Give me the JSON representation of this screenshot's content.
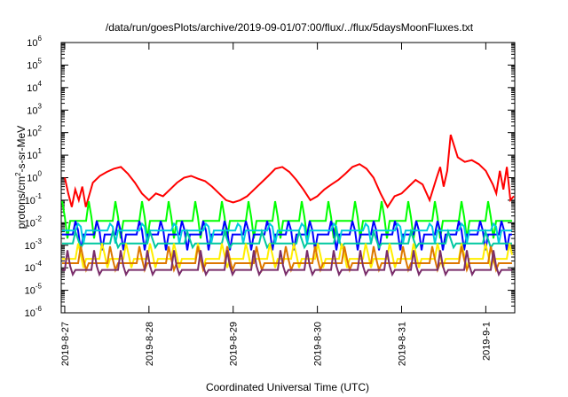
{
  "chart_data": {
    "type": "line",
    "title": "/data/run/goesPlots/archive/2019-09-01/07:00/flux/../flux/5daysMoonFluxes.txt",
    "xlabel": "Coordinated Universal Time (UTC)",
    "ylabel_prefix": "protons/cm",
    "ylabel_sup": "2",
    "ylabel_suffix": "-s-sr-MeV",
    "yscale": "log",
    "ylim_exp": [
      -6,
      6
    ],
    "grid": false,
    "legend": "none",
    "x_ticks": [
      "2019-8-27",
      "2019-8-28",
      "2019-8-29",
      "2019-8-30",
      "2019-8-31",
      "2019-9-1"
    ],
    "x_start": "2019-08-26T23:00",
    "x_end": "2019-09-01T08:15",
    "series": [
      {
        "color": "#ff0000",
        "x": [
          "2019-08-27T00:00",
          "2019-08-27T01:00",
          "2019-08-27T02:00",
          "2019-08-27T03:00",
          "2019-08-27T04:00",
          "2019-08-27T05:00",
          "2019-08-27T06:00",
          "2019-08-27T08:00",
          "2019-08-27T10:00",
          "2019-08-27T12:00",
          "2019-08-27T14:00",
          "2019-08-27T16:00",
          "2019-08-27T18:00",
          "2019-08-27T20:00",
          "2019-08-27T22:00",
          "2019-08-28T00:00",
          "2019-08-28T02:00",
          "2019-08-28T04:00",
          "2019-08-28T06:00",
          "2019-08-28T08:00",
          "2019-08-28T10:00",
          "2019-08-28T12:00",
          "2019-08-28T14:00",
          "2019-08-28T16:00",
          "2019-08-28T18:00",
          "2019-08-28T20:00",
          "2019-08-28T22:00",
          "2019-08-29T00:00",
          "2019-08-29T02:00",
          "2019-08-29T04:00",
          "2019-08-29T06:00",
          "2019-08-29T08:00",
          "2019-08-29T10:00",
          "2019-08-29T12:00",
          "2019-08-29T14:00",
          "2019-08-29T16:00",
          "2019-08-29T18:00",
          "2019-08-29T20:00",
          "2019-08-29T22:00",
          "2019-08-30T00:00",
          "2019-08-30T02:00",
          "2019-08-30T04:00",
          "2019-08-30T06:00",
          "2019-08-30T08:00",
          "2019-08-30T10:00",
          "2019-08-30T12:00",
          "2019-08-30T14:00",
          "2019-08-30T16:00",
          "2019-08-30T18:00",
          "2019-08-30T20:00",
          "2019-08-30T22:00",
          "2019-08-31T00:00",
          "2019-08-31T02:00",
          "2019-08-31T04:00",
          "2019-08-31T06:00",
          "2019-08-31T08:00",
          "2019-08-31T10:00",
          "2019-08-31T11:00",
          "2019-08-31T12:00",
          "2019-08-31T13:00",
          "2019-08-31T14:00",
          "2019-08-31T16:00",
          "2019-08-31T18:00",
          "2019-08-31T20:00",
          "2019-08-31T22:00",
          "2019-09-01T00:00",
          "2019-09-01T02:00",
          "2019-09-01T03:00",
          "2019-09-01T04:00",
          "2019-09-01T05:00",
          "2019-09-01T06:00",
          "2019-09-01T07:00",
          "2019-09-01T08:00"
        ],
        "values": [
          1.0,
          0.2,
          0.05,
          0.3,
          0.1,
          0.4,
          0.05,
          0.6,
          1.2,
          1.8,
          2.5,
          3.0,
          1.5,
          0.6,
          0.2,
          0.1,
          0.2,
          0.15,
          0.3,
          0.6,
          1.0,
          1.2,
          0.9,
          0.7,
          0.4,
          0.2,
          0.1,
          0.08,
          0.1,
          0.15,
          0.3,
          0.6,
          1.2,
          2.5,
          3.0,
          1.8,
          0.8,
          0.3,
          0.1,
          0.15,
          0.3,
          0.5,
          0.8,
          1.5,
          3.0,
          4.0,
          2.5,
          1.0,
          0.2,
          0.05,
          0.15,
          0.2,
          0.4,
          0.8,
          0.5,
          0.1,
          1.0,
          3.0,
          0.4,
          2.0,
          80.0,
          8.0,
          5.0,
          6.0,
          4.0,
          2.0,
          0.5,
          0.2,
          2.0,
          0.3,
          3.0,
          0.1,
          0.15
        ]
      },
      {
        "color": "#00ff00",
        "base": 0.012,
        "spike": 0.09,
        "dip": 0.002,
        "period": 2.5
      },
      {
        "color": "#0000ff",
        "base": 0.003,
        "spike": 0.012,
        "dip": 0.0006,
        "period": 2.0
      },
      {
        "color": "#00ccdd",
        "base": 0.0045,
        "spike": 0.009,
        "dip": 0.0012,
        "period": 3.0
      },
      {
        "color": "#00c8a0",
        "base": 0.0012,
        "spike": 0.004,
        "dip": 0.0008,
        "period": 3.5
      },
      {
        "color": "#ffee00",
        "base": 0.00025,
        "spike": 0.0012,
        "dip": 0.0001,
        "period": 2.2
      },
      {
        "color": "#dd7700",
        "base": 0.00016,
        "spike": 0.0009,
        "dip": 8e-05,
        "period": 2.7
      },
      {
        "color": "#7a2d6a",
        "base": 8e-05,
        "spike": 0.0006,
        "dip": 5e-05,
        "period": 2.4
      }
    ]
  }
}
